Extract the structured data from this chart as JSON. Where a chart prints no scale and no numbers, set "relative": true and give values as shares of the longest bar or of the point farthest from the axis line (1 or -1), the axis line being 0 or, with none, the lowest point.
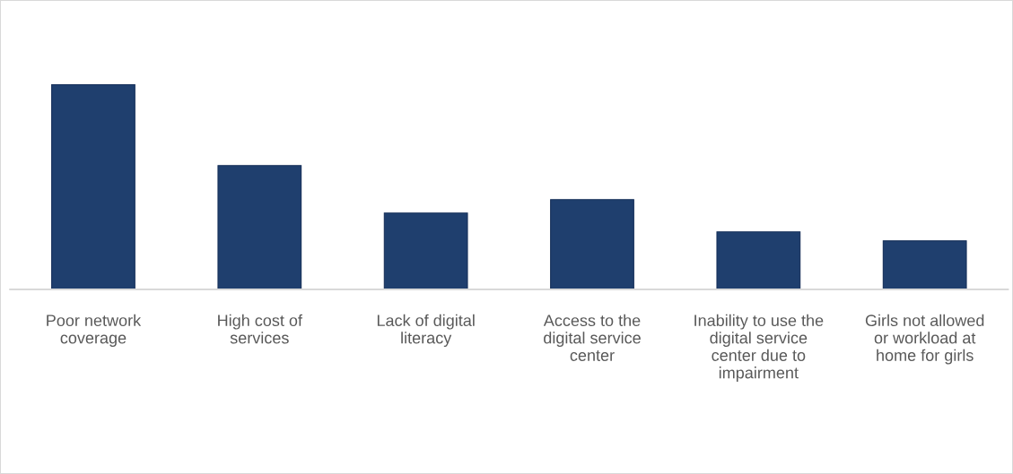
{
  "chart_data": {
    "type": "bar",
    "relative": true,
    "categories": [
      "Poor network\ncoverage",
      "High cost of\nservices",
      "Lack of digital\nliteracy",
      "Access to the\ndigital service\ncenter",
      "Inability to use the\ndigital service\ncenter due to\nimpairment",
      "Girls not allowed\nor workload at\nhome for girls"
    ],
    "values": [
      1,
      0.605,
      0.373,
      0.439,
      0.281,
      0.237
    ],
    "color": "#1f3f6e"
  }
}
